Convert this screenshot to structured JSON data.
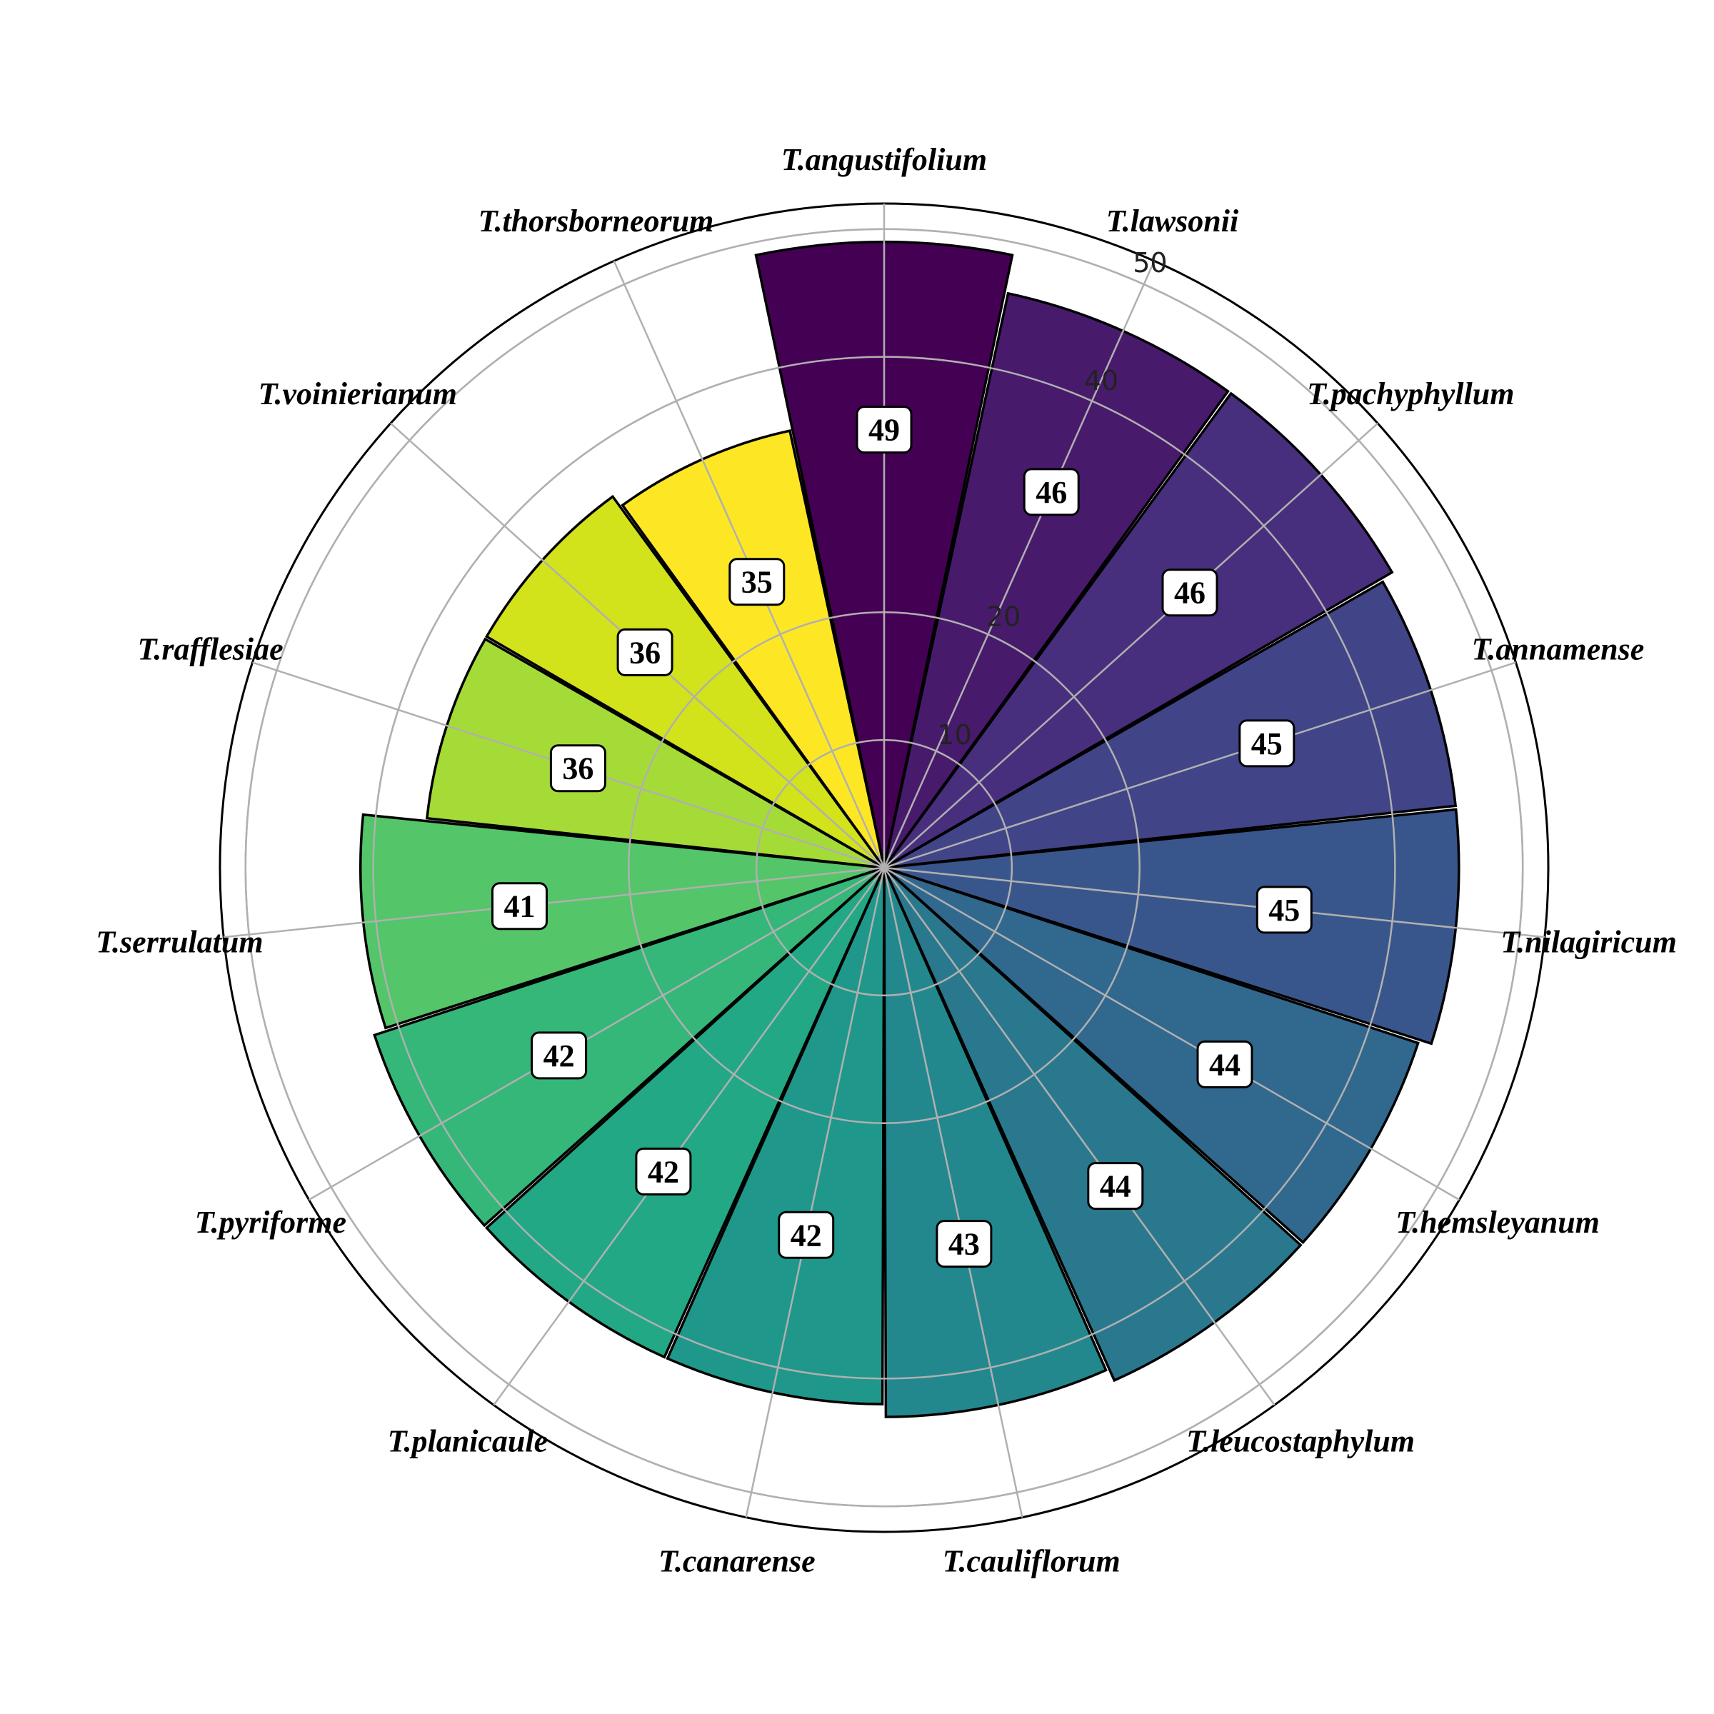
{
  "chart_data": {
    "type": "bar",
    "subtype": "polar",
    "categories": [
      "T.angustifolium",
      "T.lawsonii",
      "T.pachyphyllum",
      "T.annamense",
      "T.nilagiricum",
      "T.hemsleyanum",
      "T.leucostaphylum",
      "T.cauliflorum",
      "T.canarense",
      "T.planicaule",
      "T.pyriforme",
      "T.serrulatum",
      "T.rafflesiae",
      "T.voinierianum",
      "T.thorsborneorum"
    ],
    "values": [
      49,
      46,
      46,
      45,
      45,
      44,
      44,
      43,
      42,
      42,
      42,
      41,
      36,
      36,
      35
    ],
    "value_labels": [
      "49",
      "46",
      "46",
      "45",
      "45",
      "44",
      "44",
      "43",
      "42",
      "42",
      "42",
      "41",
      "36",
      "36",
      "35"
    ],
    "rticks": [
      10,
      20,
      40,
      50
    ],
    "rtick_labels": [
      "10",
      "20",
      "40",
      "50"
    ],
    "rlim": [
      0,
      52
    ],
    "grid": true,
    "colormap": "viridis",
    "colors": [
      "#440154",
      "#481a6c",
      "#472f7d",
      "#414487",
      "#39568c",
      "#31688e",
      "#2a788e",
      "#23888e",
      "#1f988b",
      "#22a884",
      "#35b779",
      "#54c568",
      "#7ad151",
      "#a5db36",
      "#d2e21b",
      "#fde725"
    ],
    "bar_colors": [
      "#440154",
      "#481a6c",
      "#472f7d",
      "#414487",
      "#39568c",
      "#31688e",
      "#2a788e",
      "#23888e",
      "#1f988b",
      "#22a884",
      "#35b779",
      "#54c568",
      "#a5db36",
      "#d2e21b",
      "#fde725"
    ]
  }
}
